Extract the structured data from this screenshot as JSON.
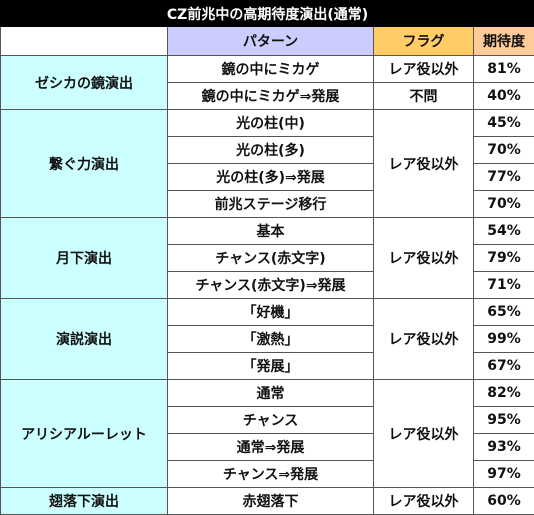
{
  "title": "CZ前兆中の高期待度演出(通常)",
  "headers": {
    "blank": "",
    "pattern": "パターン",
    "flag": "フラグ",
    "expectation": "期待度"
  },
  "groups": [
    {
      "name": "ゼシカの鏡演出",
      "rows": [
        {
          "pattern": "鏡の中にミカゲ",
          "flag": "レア役以外",
          "value": "81%"
        },
        {
          "pattern": "鏡の中にミカゲ⇒発展",
          "flag": "不問",
          "value": "40%"
        }
      ]
    },
    {
      "name": "繋ぐ力演出",
      "flag": "レア役以外",
      "rows": [
        {
          "pattern": "光の柱(中)",
          "value": "45%"
        },
        {
          "pattern": "光の柱(多)",
          "value": "70%"
        },
        {
          "pattern": "光の柱(多)⇒発展",
          "value": "77%"
        },
        {
          "pattern": "前兆ステージ移行",
          "value": "70%"
        }
      ]
    },
    {
      "name": "月下演出",
      "flag": "レア役以外",
      "rows": [
        {
          "pattern": "基本",
          "value": "54%"
        },
        {
          "pattern": "チャンス(赤文字)",
          "value": "79%"
        },
        {
          "pattern": "チャンス(赤文字)⇒発展",
          "value": "71%"
        }
      ]
    },
    {
      "name": "演説演出",
      "flag": "レア役以外",
      "rows": [
        {
          "pattern": "「好機」",
          "value": "65%"
        },
        {
          "pattern": "「激熱」",
          "value": "99%"
        },
        {
          "pattern": "「発展」",
          "value": "67%"
        }
      ]
    },
    {
      "name": "アリシアルーレット",
      "flag": "レア役以外",
      "rows": [
        {
          "pattern": "通常",
          "value": "82%"
        },
        {
          "pattern": "チャンス",
          "value": "95%"
        },
        {
          "pattern": "通常⇒発展",
          "value": "93%"
        },
        {
          "pattern": "チャンス⇒発展",
          "value": "97%"
        }
      ]
    },
    {
      "name": "翅落下演出",
      "flag": "レア役以外",
      "rows": [
        {
          "pattern": "赤翅落下",
          "value": "60%"
        }
      ]
    }
  ]
}
